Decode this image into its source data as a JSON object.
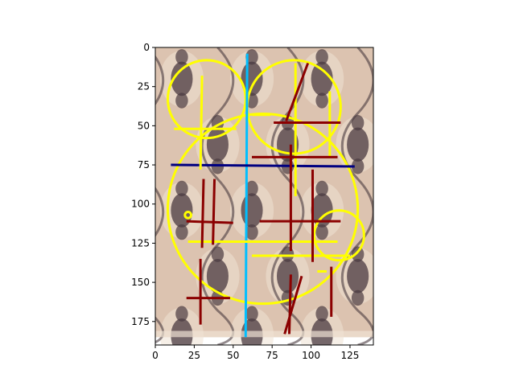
{
  "chart_data": {
    "type": "image-with-overlays",
    "title": "",
    "xlabel": "",
    "ylabel": "",
    "xlim": [
      0,
      140
    ],
    "ylim": [
      190,
      0
    ],
    "y_axis_inverted": true,
    "grid": false,
    "legend": "none",
    "x_ticks": [
      0,
      25,
      50,
      75,
      100,
      125
    ],
    "y_ticks": [
      0,
      25,
      50,
      75,
      100,
      125,
      150,
      175
    ],
    "background_image": {
      "description": "ornate damask tile pattern",
      "extent_x": [
        0,
        140
      ],
      "extent_y": [
        0,
        185
      ],
      "colors": {
        "base": "#dcc3b0",
        "pattern": "#4a3a40",
        "light": "#efe2d4"
      }
    },
    "colors": {
      "yellow": "#ffff00",
      "dark_red": "#8b0000",
      "navy": "#000080",
      "cyan": "#00bfff"
    },
    "circles": [
      {
        "cx": 33,
        "cy": 33,
        "r": 25,
        "color": "#ffff00"
      },
      {
        "cx": 89,
        "cy": 38,
        "r": 30,
        "color": "#ffff00"
      },
      {
        "cx": 69,
        "cy": 103,
        "r": 61,
        "color": "#ffff00"
      },
      {
        "cx": 118,
        "cy": 120,
        "r": 16,
        "color": "#ffff00"
      },
      {
        "cx": 21,
        "cy": 107,
        "r": 2,
        "color": "#ffff00"
      }
    ],
    "segments": [
      {
        "x1": 59,
        "y1": 4,
        "x2": 58,
        "y2": 185,
        "color": "#00bfff",
        "width": 3
      },
      {
        "x1": 10,
        "y1": 75,
        "x2": 128,
        "y2": 76,
        "color": "#000080",
        "width": 3
      },
      {
        "x1": 30,
        "y1": 18,
        "x2": 29,
        "y2": 78,
        "color": "#ffff00",
        "width": 3
      },
      {
        "x1": 12,
        "y1": 52,
        "x2": 52,
        "y2": 52,
        "color": "#ffff00",
        "width": 3
      },
      {
        "x1": 90,
        "y1": 10,
        "x2": 90,
        "y2": 95,
        "color": "#ffff00",
        "width": 3
      },
      {
        "x1": 112,
        "y1": 28,
        "x2": 112,
        "y2": 70,
        "color": "#ffff00",
        "width": 3
      },
      {
        "x1": 62,
        "y1": 43,
        "x2": 74,
        "y2": 43,
        "color": "#ffff00",
        "width": 3
      },
      {
        "x1": 21,
        "y1": 124,
        "x2": 117,
        "y2": 124,
        "color": "#ffff00",
        "width": 3
      },
      {
        "x1": 62,
        "y1": 133,
        "x2": 125,
        "y2": 133,
        "color": "#ffff00",
        "width": 3
      },
      {
        "x1": 104,
        "y1": 143,
        "x2": 110,
        "y2": 143,
        "color": "#ffff00",
        "width": 3
      },
      {
        "x1": 98,
        "y1": 10,
        "x2": 84,
        "y2": 47,
        "color": "#8b0000",
        "width": 3
      },
      {
        "x1": 76,
        "y1": 48,
        "x2": 119,
        "y2": 48,
        "color": "#8b0000",
        "width": 3
      },
      {
        "x1": 62,
        "y1": 70,
        "x2": 117,
        "y2": 70,
        "color": "#8b0000",
        "width": 3
      },
      {
        "x1": 87,
        "y1": 62,
        "x2": 87,
        "y2": 130,
        "color": "#8b0000",
        "width": 3
      },
      {
        "x1": 101,
        "y1": 78,
        "x2": 101,
        "y2": 137,
        "color": "#8b0000",
        "width": 3
      },
      {
        "x1": 67,
        "y1": 111,
        "x2": 119,
        "y2": 111,
        "color": "#8b0000",
        "width": 3
      },
      {
        "x1": 31,
        "y1": 84,
        "x2": 30,
        "y2": 128,
        "color": "#8b0000",
        "width": 3
      },
      {
        "x1": 38,
        "y1": 84,
        "x2": 37,
        "y2": 126,
        "color": "#8b0000",
        "width": 3
      },
      {
        "x1": 20,
        "y1": 111,
        "x2": 50,
        "y2": 112,
        "color": "#8b0000",
        "width": 3
      },
      {
        "x1": 29,
        "y1": 135,
        "x2": 29,
        "y2": 177,
        "color": "#8b0000",
        "width": 3
      },
      {
        "x1": 20,
        "y1": 160,
        "x2": 48,
        "y2": 160,
        "color": "#8b0000",
        "width": 3
      },
      {
        "x1": 94,
        "y1": 146,
        "x2": 83,
        "y2": 183,
        "color": "#8b0000",
        "width": 3
      },
      {
        "x1": 87,
        "y1": 145,
        "x2": 86,
        "y2": 183,
        "color": "#8b0000",
        "width": 3
      },
      {
        "x1": 113,
        "y1": 140,
        "x2": 113,
        "y2": 172,
        "color": "#8b0000",
        "width": 3
      }
    ]
  }
}
